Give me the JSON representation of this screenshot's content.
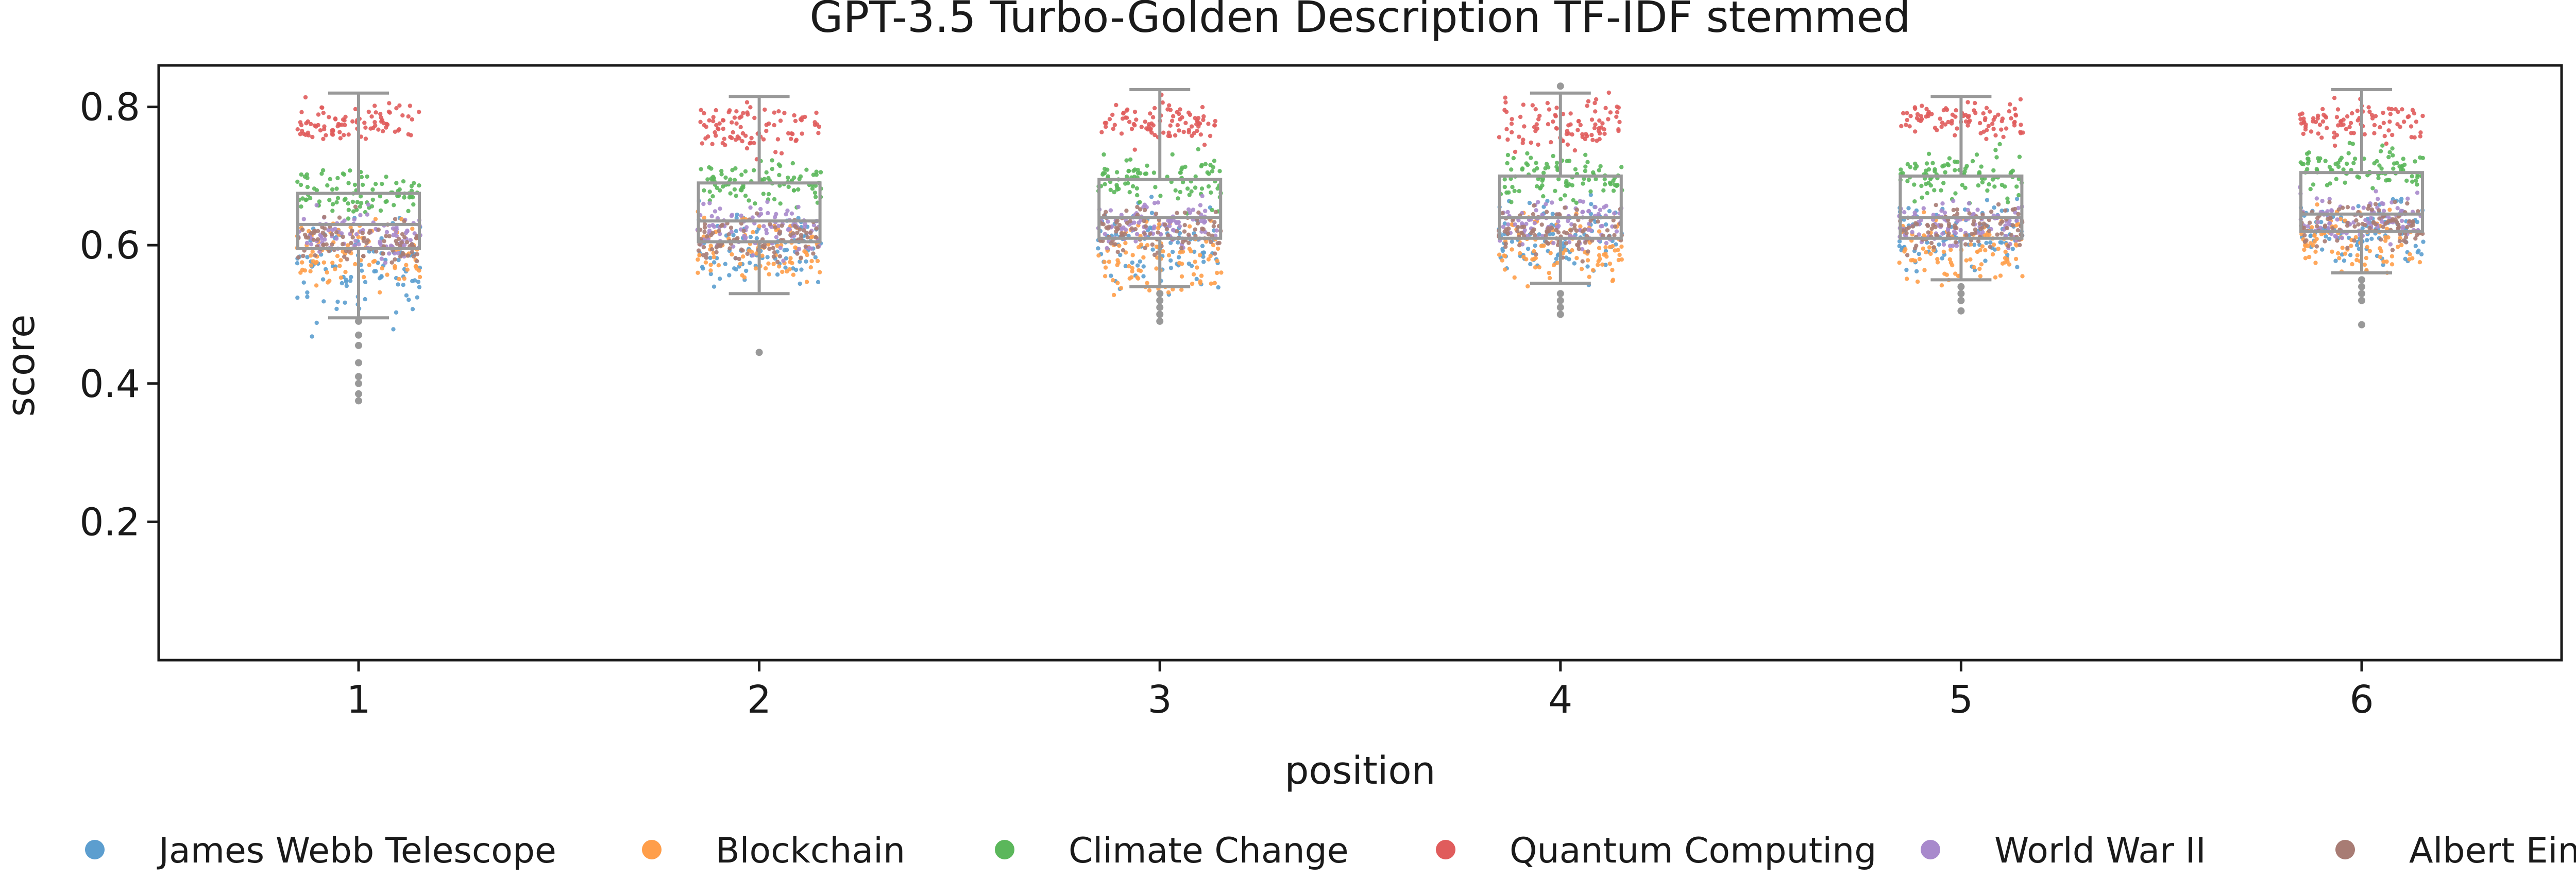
{
  "chart_data": {
    "type": "box+strip",
    "title": "GPT-3.5 Turbo-Golden Description TF-IDF stemmed",
    "xlabel": "position",
    "ylabel": "score",
    "categories": [
      "1",
      "2",
      "3",
      "4",
      "5",
      "6"
    ],
    "ylim": [
      0.0,
      0.86
    ],
    "yticks": [
      0.2,
      0.4,
      0.6,
      0.8
    ],
    "ytick_labels": [
      "0.2",
      "0.4",
      "0.6",
      "0.8"
    ],
    "grid": false,
    "legend_position": "bottom",
    "box_color": "#999999",
    "boxes": [
      {
        "position": "1",
        "q1": 0.595,
        "median": 0.63,
        "q3": 0.675,
        "whisker_low": 0.495,
        "whisker_high": 0.82,
        "outliers": [
          0.49,
          0.47,
          0.455,
          0.43,
          0.41,
          0.4,
          0.385,
          0.375
        ]
      },
      {
        "position": "2",
        "q1": 0.605,
        "median": 0.635,
        "q3": 0.69,
        "whisker_low": 0.53,
        "whisker_high": 0.815,
        "outliers": [
          0.445
        ]
      },
      {
        "position": "3",
        "q1": 0.61,
        "median": 0.64,
        "q3": 0.695,
        "whisker_low": 0.54,
        "whisker_high": 0.825,
        "outliers": [
          0.53,
          0.52,
          0.51,
          0.5,
          0.49
        ]
      },
      {
        "position": "4",
        "q1": 0.61,
        "median": 0.64,
        "q3": 0.7,
        "whisker_low": 0.545,
        "whisker_high": 0.82,
        "outliers": [
          0.53,
          0.52,
          0.51,
          0.5,
          0.83
        ]
      },
      {
        "position": "5",
        "q1": 0.61,
        "median": 0.64,
        "q3": 0.7,
        "whisker_low": 0.55,
        "whisker_high": 0.815,
        "outliers": [
          0.54,
          0.53,
          0.52,
          0.505
        ]
      },
      {
        "position": "6",
        "q1": 0.62,
        "median": 0.645,
        "q3": 0.705,
        "whisker_low": 0.56,
        "whisker_high": 0.825,
        "outliers": [
          0.55,
          0.54,
          0.53,
          0.52,
          0.485
        ]
      }
    ],
    "series": [
      {
        "name": "James Webb Telescope",
        "color": "#5c9ecf",
        "ranges": [
          [
            0.44,
            0.68
          ],
          [
            0.52,
            0.67
          ],
          [
            0.52,
            0.68
          ],
          [
            0.53,
            0.69
          ],
          [
            0.54,
            0.69
          ],
          [
            0.55,
            0.69
          ]
        ]
      },
      {
        "name": "Blockchain",
        "color": "#ff9e4a",
        "ranges": [
          [
            0.5,
            0.66
          ],
          [
            0.52,
            0.66
          ],
          [
            0.5,
            0.66
          ],
          [
            0.52,
            0.67
          ],
          [
            0.53,
            0.66
          ],
          [
            0.54,
            0.67
          ]
        ]
      },
      {
        "name": "Climate Change",
        "color": "#5bb75b",
        "ranges": [
          [
            0.62,
            0.73
          ],
          [
            0.64,
            0.74
          ],
          [
            0.64,
            0.75
          ],
          [
            0.65,
            0.75
          ],
          [
            0.65,
            0.75
          ],
          [
            0.66,
            0.76
          ]
        ]
      },
      {
        "name": "Quantum Computing",
        "color": "#e05c5c",
        "ranges": [
          [
            0.74,
            0.82
          ],
          [
            0.72,
            0.82
          ],
          [
            0.73,
            0.82
          ],
          [
            0.72,
            0.83
          ],
          [
            0.74,
            0.82
          ],
          [
            0.74,
            0.82
          ]
        ]
      },
      {
        "name": "World War II",
        "color": "#a889cc",
        "ranges": [
          [
            0.56,
            0.67
          ],
          [
            0.57,
            0.68
          ],
          [
            0.58,
            0.68
          ],
          [
            0.58,
            0.69
          ],
          [
            0.58,
            0.68
          ],
          [
            0.59,
            0.69
          ]
        ]
      },
      {
        "name": "Albert Einstein",
        "color": "#a87c74",
        "ranges": [
          [
            0.55,
            0.66
          ],
          [
            0.56,
            0.66
          ],
          [
            0.57,
            0.67
          ],
          [
            0.57,
            0.67
          ],
          [
            0.58,
            0.67
          ],
          [
            0.58,
            0.68
          ]
        ]
      }
    ]
  }
}
